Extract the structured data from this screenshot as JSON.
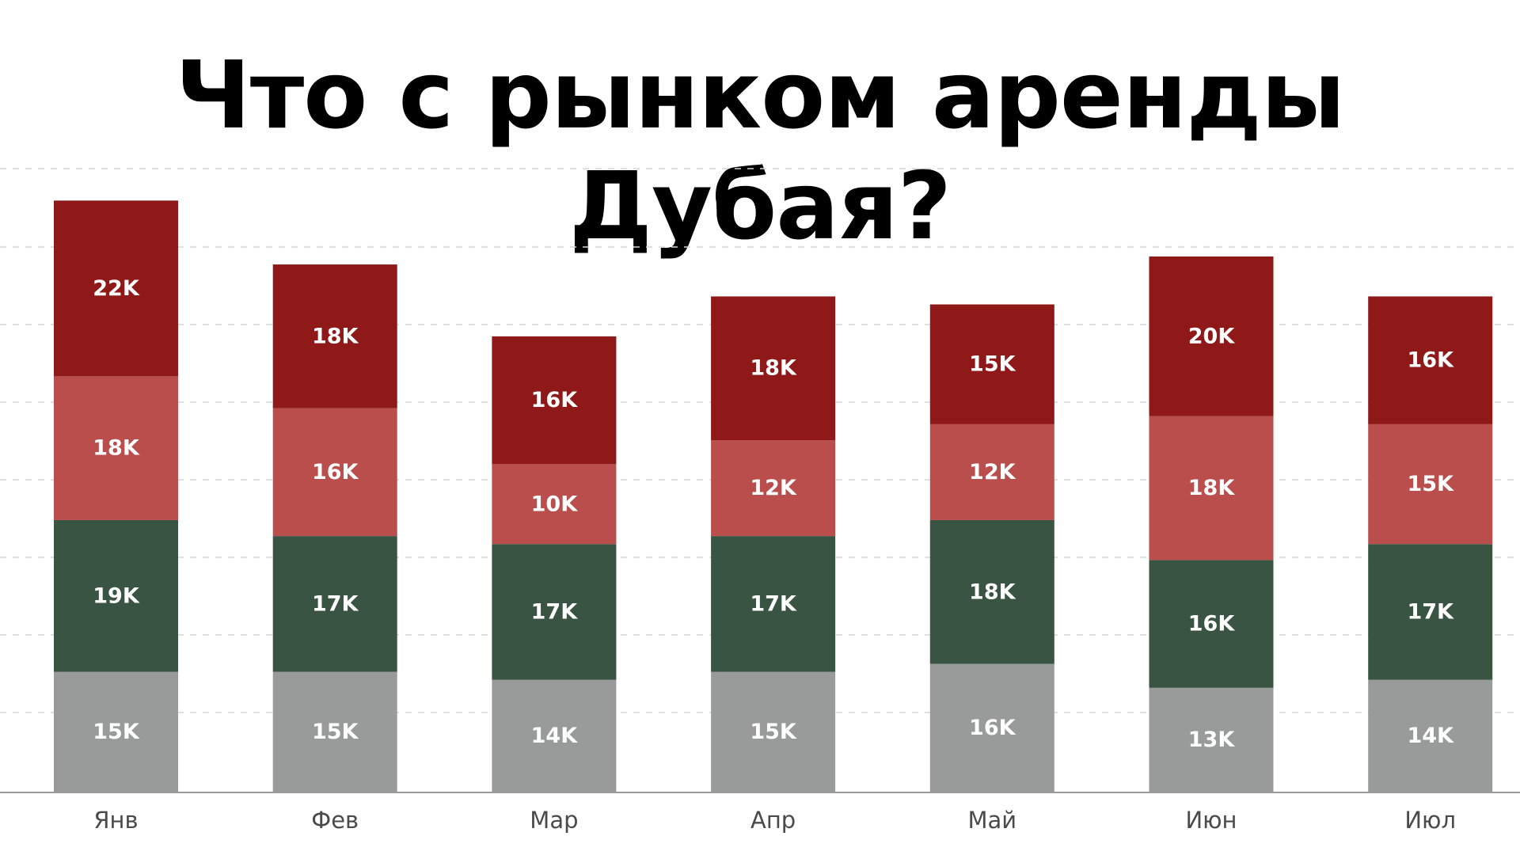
{
  "chart_data": {
    "type": "bar",
    "stacked": true,
    "title": "Что с рынком аренды Дубая?",
    "xlabel": "",
    "ylabel": "",
    "ylim": [
      0,
      78
    ],
    "grid": true,
    "legend": "none",
    "categories": [
      "Янв",
      "Фев",
      "Мар",
      "Апр",
      "Май",
      "Июн",
      "Июл"
    ],
    "series": [
      {
        "color": "#999b9a",
        "values": [
          15,
          15,
          14,
          15,
          16,
          13,
          14
        ],
        "labels": [
          "15K",
          "15K",
          "14K",
          "15K",
          "16K",
          "13K",
          "14K"
        ]
      },
      {
        "color": "#3a5444",
        "values": [
          19,
          17,
          17,
          17,
          18,
          16,
          17
        ],
        "labels": [
          "19K",
          "17K",
          "17K",
          "17K",
          "18K",
          "16K",
          "17K"
        ]
      },
      {
        "color": "#b94e4c",
        "values": [
          18,
          16,
          10,
          12,
          12,
          18,
          15
        ],
        "labels": [
          "18K",
          "16K",
          "10K",
          "12K",
          "12K",
          "18K",
          "15K"
        ]
      },
      {
        "color": "#8f1819",
        "values": [
          22,
          18,
          16,
          18,
          15,
          20,
          16
        ],
        "labels": [
          "22K",
          "18K",
          "16K",
          "18K",
          "15K",
          "20K",
          "16K"
        ]
      }
    ]
  }
}
